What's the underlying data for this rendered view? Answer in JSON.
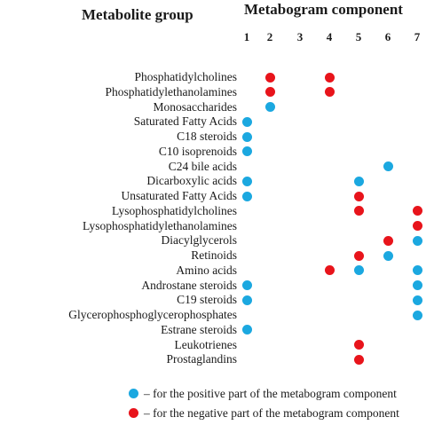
{
  "headers": {
    "metabolite_group": "Metabolite group",
    "metabogram_component": "Metabogram component"
  },
  "colors": {
    "positive": "#1ba8e0",
    "negative": "#e8141b"
  },
  "columns": [
    "1",
    "2",
    "3",
    "4",
    "5",
    "6",
    "7"
  ],
  "rows": [
    {
      "label": "Phosphatidylcholines",
      "dots": [
        {
          "col": 2,
          "sign": "negative"
        },
        {
          "col": 4,
          "sign": "negative"
        }
      ]
    },
    {
      "label": "Phosphatidylethanolamines",
      "dots": [
        {
          "col": 2,
          "sign": "negative"
        },
        {
          "col": 4,
          "sign": "negative"
        }
      ]
    },
    {
      "label": "Monosaccharides",
      "dots": [
        {
          "col": 2,
          "sign": "positive"
        }
      ]
    },
    {
      "label": "Saturated Fatty Acids",
      "dots": [
        {
          "col": 1,
          "sign": "positive"
        }
      ]
    },
    {
      "label": "C18 steroids",
      "dots": [
        {
          "col": 1,
          "sign": "positive"
        }
      ]
    },
    {
      "label": "C10 isoprenoids",
      "dots": [
        {
          "col": 1,
          "sign": "positive"
        }
      ]
    },
    {
      "label": "C24 bile acids",
      "dots": [
        {
          "col": 6,
          "sign": "positive"
        }
      ]
    },
    {
      "label": "Dicarboxylic acids",
      "dots": [
        {
          "col": 1,
          "sign": "positive"
        },
        {
          "col": 5,
          "sign": "positive"
        }
      ]
    },
    {
      "label": "Unsaturated Fatty Acids",
      "dots": [
        {
          "col": 1,
          "sign": "positive"
        },
        {
          "col": 5,
          "sign": "negative"
        }
      ]
    },
    {
      "label": "Lysophosphatidylcholines",
      "dots": [
        {
          "col": 5,
          "sign": "negative"
        },
        {
          "col": 7,
          "sign": "negative"
        }
      ]
    },
    {
      "label": "Lysophosphatidylethanolamines",
      "dots": [
        {
          "col": 7,
          "sign": "negative"
        }
      ]
    },
    {
      "label": "Diacylglycerols",
      "dots": [
        {
          "col": 6,
          "sign": "negative"
        },
        {
          "col": 7,
          "sign": "positive"
        }
      ]
    },
    {
      "label": "Retinoids",
      "dots": [
        {
          "col": 5,
          "sign": "negative"
        },
        {
          "col": 6,
          "sign": "positive"
        }
      ]
    },
    {
      "label": "Amino acids",
      "dots": [
        {
          "col": 4,
          "sign": "negative"
        },
        {
          "col": 5,
          "sign": "positive"
        },
        {
          "col": 7,
          "sign": "positive"
        }
      ]
    },
    {
      "label": "Androstane steroids",
      "dots": [
        {
          "col": 1,
          "sign": "positive"
        },
        {
          "col": 7,
          "sign": "positive"
        }
      ]
    },
    {
      "label": "C19 steroids",
      "dots": [
        {
          "col": 1,
          "sign": "positive"
        },
        {
          "col": 7,
          "sign": "positive"
        }
      ]
    },
    {
      "label": "Glycerophosphoglycerophosphates",
      "dots": [
        {
          "col": 7,
          "sign": "positive"
        }
      ]
    },
    {
      "label": "Estrane steroids",
      "dots": [
        {
          "col": 1,
          "sign": "positive"
        }
      ]
    },
    {
      "label": "Leukotrienes",
      "dots": [
        {
          "col": 5,
          "sign": "negative"
        }
      ]
    },
    {
      "label": "Prostaglandins",
      "dots": [
        {
          "col": 5,
          "sign": "negative"
        }
      ]
    }
  ],
  "legend": {
    "positive": "– for the positive part of the metabogram component",
    "negative": "– for the negative part of the metabogram component"
  }
}
